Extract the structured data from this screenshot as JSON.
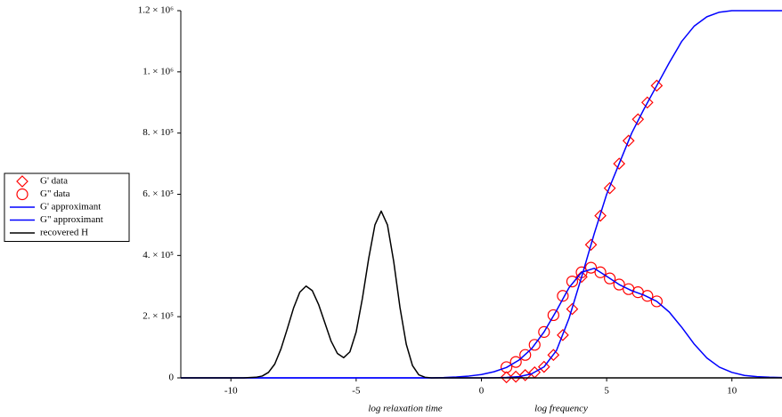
{
  "chart_data": {
    "type": "line",
    "legend": "left",
    "xlim": [
      -12,
      12
    ],
    "ylim": [
      0,
      1200000
    ],
    "xticks": [
      -10,
      -5,
      0,
      5,
      10
    ],
    "yticks": [
      0,
      {
        "value": 200000,
        "label": "2. × 10⁵"
      },
      {
        "value": 400000,
        "label": "4. × 10⁵"
      },
      {
        "value": 600000,
        "label": "6. × 10⁵"
      },
      {
        "value": 800000,
        "label": "8. × 10⁵"
      },
      {
        "value": 1000000,
        "label": "1. × 10⁶"
      },
      {
        "value": 1200000,
        "label": "1.2 × 10⁶"
      }
    ],
    "x_labels": [
      "log relaxation time",
      "log frequency"
    ],
    "series": [
      {
        "name": "G' data",
        "marker": "diamond",
        "color": "#ff0000",
        "x": [
          1,
          1.375,
          1.75,
          2.125,
          2.5,
          2.875,
          3.25,
          3.625,
          4,
          4.375,
          4.75,
          5.125,
          5.5,
          5.875,
          6.25,
          6.625,
          7
        ],
        "values": [
          2000,
          4000,
          9000,
          18000,
          36000,
          75000,
          140000,
          225000,
          330000,
          435000,
          530000,
          620000,
          700000,
          775000,
          845000,
          900000,
          955000
        ]
      },
      {
        "name": "G\" data",
        "marker": "circle",
        "color": "#ff0000",
        "x": [
          1,
          1.375,
          1.75,
          2.125,
          2.5,
          2.875,
          3.25,
          3.625,
          4,
          4.375,
          4.75,
          5.125,
          5.5,
          5.875,
          6.25,
          6.625,
          7
        ],
        "values": [
          35000,
          52000,
          75000,
          108000,
          150000,
          205000,
          268000,
          315000,
          345000,
          360000,
          345000,
          325000,
          305000,
          290000,
          280000,
          268000,
          250000
        ]
      },
      {
        "name": "G' approximant",
        "color": "#0000ff",
        "x": [
          -12,
          -1,
          0,
          0.5,
          1,
          1.5,
          2,
          2.5,
          3,
          3.5,
          4,
          4.5,
          5,
          5.5,
          6,
          6.5,
          7,
          7.5,
          8,
          8.5,
          9,
          9.5,
          10,
          10.5,
          11,
          11.5,
          12
        ],
        "values": [
          0,
          0,
          0,
          500,
          1500,
          4000,
          13000,
          36000,
          90000,
          195000,
          330000,
          470000,
          600000,
          700000,
          800000,
          880000,
          955000,
          1030000,
          1100000,
          1150000,
          1180000,
          1195000,
          1200000,
          1200000,
          1200000,
          1200000,
          1200000
        ]
      },
      {
        "name": "G\" approximant",
        "color": "#0000ff",
        "x": [
          -12,
          -2,
          -1.5,
          -1,
          -0.5,
          0,
          0.5,
          1,
          1.5,
          2,
          2.5,
          3,
          3.5,
          4,
          4.5,
          5,
          5.5,
          6,
          6.5,
          7,
          7.5,
          8,
          8.5,
          9,
          9.5,
          10,
          10.5,
          11,
          11.5,
          12
        ],
        "values": [
          0,
          0,
          1000,
          3000,
          6000,
          11000,
          20000,
          34000,
          58000,
          95000,
          150000,
          220000,
          295000,
          345000,
          358000,
          332000,
          305000,
          285000,
          270000,
          250000,
          215000,
          165000,
          110000,
          65000,
          35000,
          18000,
          8000,
          4000,
          2000,
          1000
        ]
      },
      {
        "name": "recovered H",
        "color": "#000000",
        "x": [
          -12,
          -9.5,
          -9,
          -8.75,
          -8.5,
          -8.25,
          -8,
          -7.75,
          -7.5,
          -7.25,
          -7,
          -6.75,
          -6.5,
          -6.25,
          -6,
          -5.75,
          -5.5,
          -5.25,
          -5,
          -4.75,
          -4.5,
          -4.25,
          -4,
          -3.75,
          -3.5,
          -3.25,
          -3,
          -2.75,
          -2.5,
          -2.25,
          -2,
          12
        ],
        "values": [
          0,
          0,
          2000,
          6000,
          18000,
          45000,
          95000,
          160000,
          228000,
          280000,
          300000,
          285000,
          240000,
          180000,
          120000,
          80000,
          66000,
          85000,
          150000,
          260000,
          390000,
          500000,
          545000,
          500000,
          380000,
          230000,
          110000,
          40000,
          10000,
          2000,
          0,
          0
        ]
      }
    ]
  }
}
